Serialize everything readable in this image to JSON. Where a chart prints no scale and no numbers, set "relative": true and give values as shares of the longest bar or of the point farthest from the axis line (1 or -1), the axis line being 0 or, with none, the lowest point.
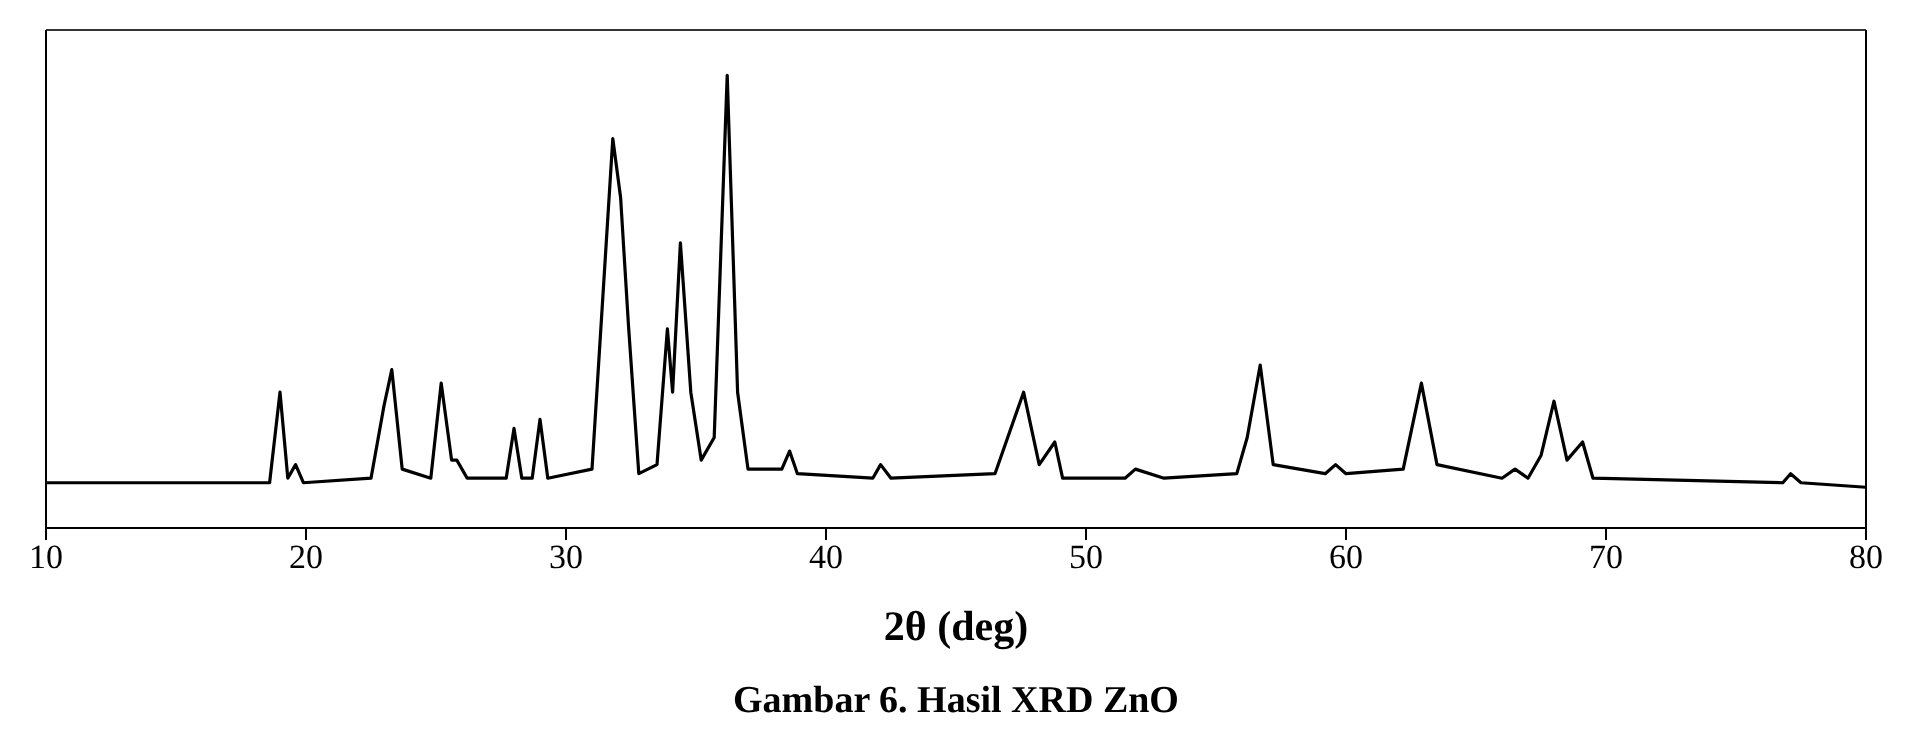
{
  "chart_data": {
    "type": "line",
    "relative": true,
    "xlabel": "2θ (deg)",
    "xlim": [
      10,
      80
    ],
    "xticks": [
      10,
      20,
      30,
      40,
      50,
      60,
      70,
      80
    ],
    "color": "#000000",
    "marker": "none",
    "annotations": [
      "Gambar 6. Hasil XRD ZnO"
    ],
    "x": [
      10,
      18.6,
      19.0,
      19.3,
      19.6,
      19.9,
      22.5,
      23.0,
      23.3,
      23.7,
      24.8,
      25.2,
      25.6,
      25.8,
      26.2,
      27.7,
      28.0,
      28.3,
      28.7,
      29.0,
      29.3,
      31.0,
      31.8,
      32.1,
      32.4,
      32.8,
      33.5,
      33.9,
      34.1,
      34.4,
      34.8,
      35.2,
      35.7,
      36.2,
      36.6,
      37.0,
      38.3,
      38.6,
      38.9,
      41.8,
      42.1,
      42.5,
      46.5,
      47.6,
      48.2,
      48.8,
      49.1,
      51.5,
      51.9,
      53,
      55.8,
      56.2,
      56.7,
      57.2,
      59.2,
      59.6,
      60,
      62.2,
      62.9,
      63.5,
      66,
      66.5,
      67,
      67.5,
      68.0,
      68.5,
      69.1,
      69.5,
      76.8,
      77.1,
      77.5,
      80
    ],
    "values": [
      0.1,
      0.1,
      0.3,
      0.11,
      0.14,
      0.1,
      0.11,
      0.27,
      0.35,
      0.13,
      0.11,
      0.32,
      0.15,
      0.15,
      0.11,
      0.11,
      0.22,
      0.11,
      0.11,
      0.24,
      0.11,
      0.13,
      0.86,
      0.73,
      0.45,
      0.12,
      0.14,
      0.44,
      0.3,
      0.63,
      0.3,
      0.15,
      0.2,
      1.0,
      0.3,
      0.13,
      0.13,
      0.17,
      0.12,
      0.11,
      0.14,
      0.11,
      0.12,
      0.3,
      0.14,
      0.19,
      0.11,
      0.11,
      0.13,
      0.11,
      0.12,
      0.2,
      0.36,
      0.14,
      0.12,
      0.14,
      0.12,
      0.13,
      0.32,
      0.14,
      0.11,
      0.13,
      0.11,
      0.16,
      0.28,
      0.15,
      0.19,
      0.11,
      0.1,
      0.12,
      0.1,
      0.09
    ]
  }
}
